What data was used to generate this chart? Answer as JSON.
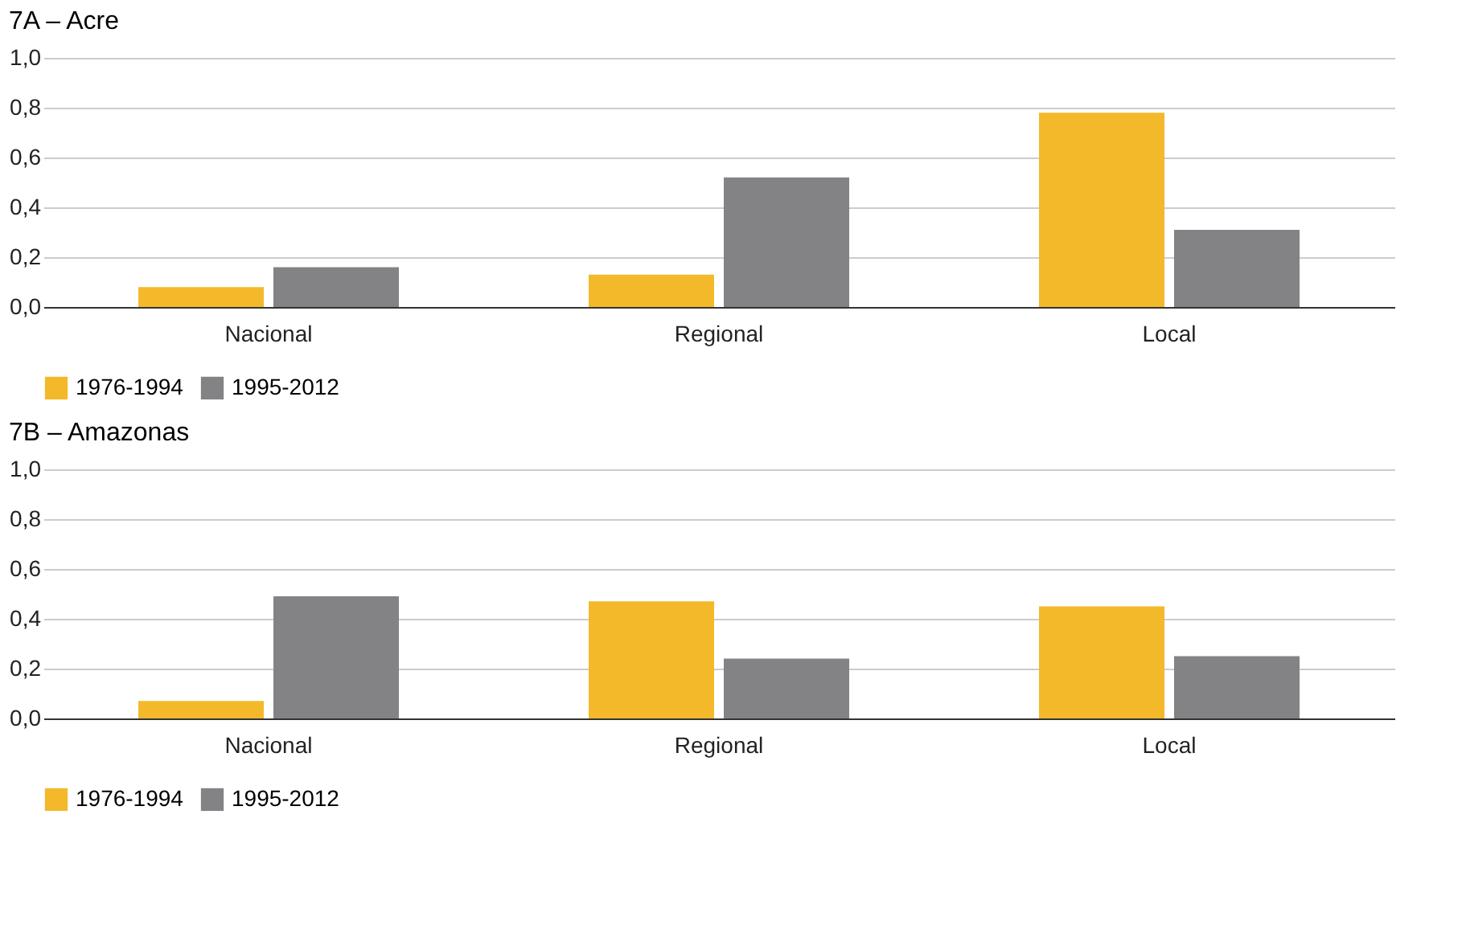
{
  "chart_data": [
    {
      "type": "bar",
      "title": "7A – Acre",
      "categories": [
        "Nacional",
        "Regional",
        "Local"
      ],
      "series": [
        {
          "name": "1976-1994",
          "color": "#f4b92b",
          "values": [
            0.08,
            0.13,
            0.78
          ]
        },
        {
          "name": "1995-2012",
          "color": "#838386",
          "values": [
            0.16,
            0.52,
            0.31
          ]
        }
      ],
      "ylim": [
        0,
        1
      ],
      "yticks": [
        {
          "value": 0,
          "label": "0,0"
        },
        {
          "value": 0.2,
          "label": "0,2"
        },
        {
          "value": 0.4,
          "label": "0,4"
        },
        {
          "value": 0.6,
          "label": "0,6"
        },
        {
          "value": 0.8,
          "label": "0,8"
        },
        {
          "value": 1,
          "label": "1,0"
        }
      ],
      "grid": "y",
      "legend": "bottom"
    },
    {
      "type": "bar",
      "title": "7B – Amazonas",
      "categories": [
        "Nacional",
        "Regional",
        "Local"
      ],
      "series": [
        {
          "name": "1976-1994",
          "color": "#f4b92b",
          "values": [
            0.07,
            0.47,
            0.45
          ]
        },
        {
          "name": "1995-2012",
          "color": "#838386",
          "values": [
            0.49,
            0.24,
            0.25
          ]
        }
      ],
      "ylim": [
        0,
        1
      ],
      "yticks": [
        {
          "value": 0,
          "label": "0,0"
        },
        {
          "value": 0.2,
          "label": "0,2"
        },
        {
          "value": 0.4,
          "label": "0,4"
        },
        {
          "value": 0.6,
          "label": "0,6"
        },
        {
          "value": 0.8,
          "label": "0,8"
        },
        {
          "value": 1,
          "label": "1,0"
        }
      ],
      "grid": "y",
      "legend": "bottom"
    }
  ]
}
